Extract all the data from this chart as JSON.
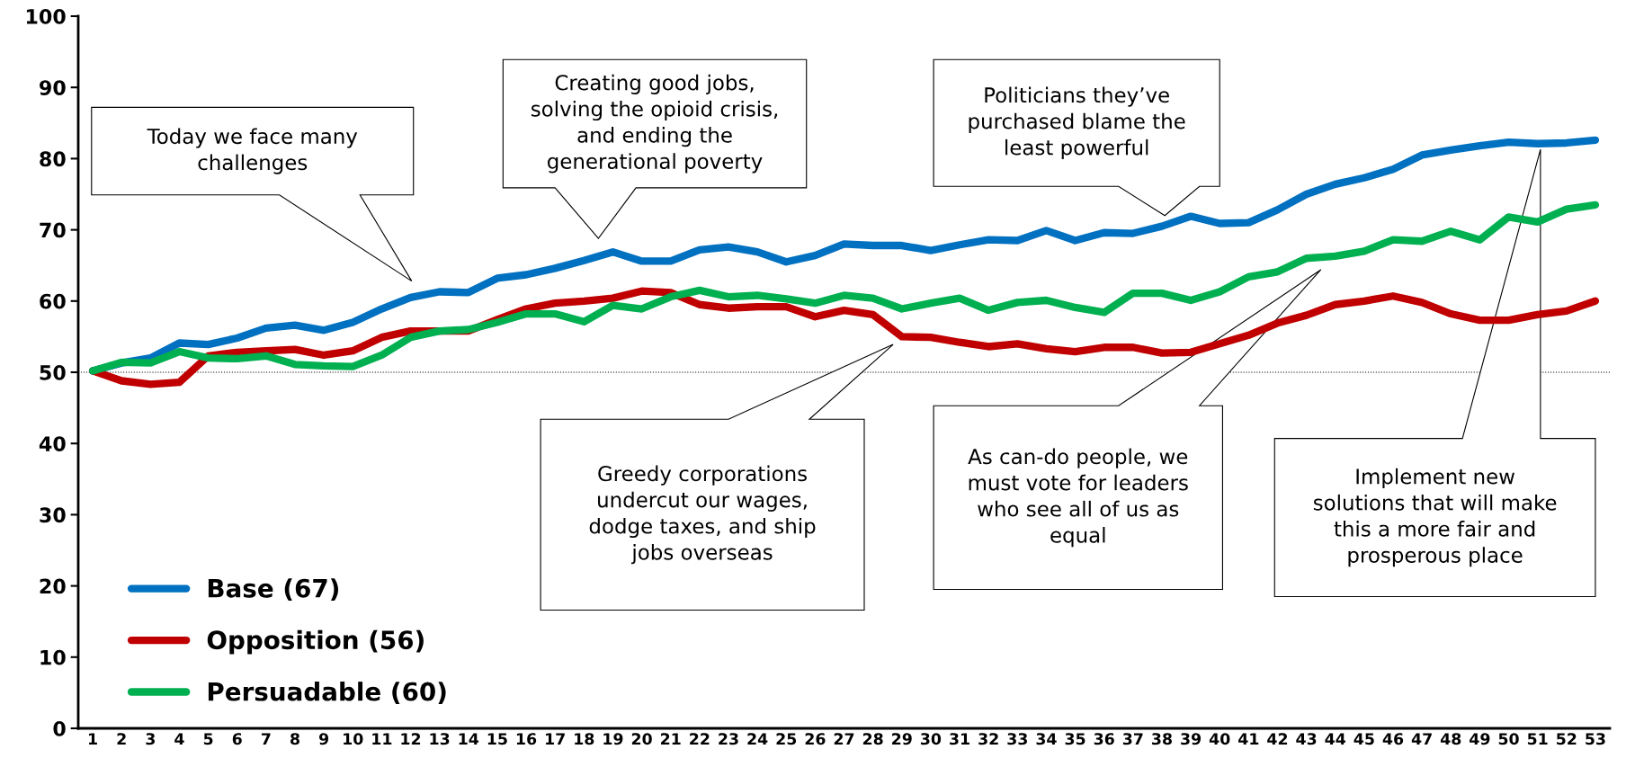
{
  "chart_data": {
    "type": "line",
    "categories": [
      "1",
      "2",
      "3",
      "4",
      "5",
      "6",
      "7",
      "8",
      "9",
      "10",
      "11",
      "12",
      "13",
      "14",
      "15",
      "16",
      "17",
      "18",
      "19",
      "20",
      "21",
      "22",
      "23",
      "24",
      "25",
      "26",
      "27",
      "28",
      "29",
      "30",
      "31",
      "32",
      "33",
      "34",
      "35",
      "36",
      "37",
      "38",
      "39",
      "40",
      "41",
      "42",
      "43",
      "44",
      "45",
      "46",
      "47",
      "48",
      "49",
      "50",
      "51",
      "52",
      "53"
    ],
    "series": [
      {
        "name": "Base (67)",
        "color": "#0070c0",
        "values": [
          50.2,
          51.3,
          52,
          54.1,
          53.9,
          54.8,
          56.2,
          56.6,
          55.9,
          57,
          58.9,
          60.5,
          61.3,
          61.2,
          63.2,
          63.7,
          64.6,
          65.7,
          66.9,
          65.6,
          65.6,
          67.2,
          67.6,
          66.9,
          65.5,
          66.4,
          68,
          67.8,
          67.8,
          67.1,
          67.9,
          68.6,
          68.5,
          69.9,
          68.5,
          69.6,
          69.5,
          70.5,
          71.9,
          70.9,
          71,
          72.8,
          75,
          76.4,
          77.3,
          78.5,
          80.5,
          81.2,
          81.8,
          82.3,
          82.1,
          82.2,
          82.6
        ]
      },
      {
        "name": "Opposition (56)",
        "color": "#c00000",
        "values": [
          50.2,
          48.8,
          48.3,
          48.6,
          52.3,
          52.8,
          53,
          53.2,
          52.4,
          53,
          54.9,
          55.8,
          55.8,
          55.8,
          57.4,
          58.9,
          59.7,
          60,
          60.4,
          61.4,
          61.2,
          59.5,
          59,
          59.2,
          59.2,
          57.8,
          58.7,
          58.1,
          55,
          54.9,
          54.2,
          53.6,
          54,
          53.3,
          52.9,
          53.5,
          53.5,
          52.7,
          52.8,
          54,
          55.2,
          56.9,
          58,
          59.5,
          60,
          60.7,
          59.8,
          58.2,
          57.3,
          57.3,
          58.1,
          58.6,
          60
        ]
      },
      {
        "name": "Persuadable (60)",
        "color": "#00b050",
        "values": [
          50.2,
          51.4,
          51.3,
          52.9,
          52,
          51.9,
          52.3,
          51.1,
          50.9,
          50.8,
          52.4,
          54.9,
          55.8,
          56,
          57,
          58.2,
          58.2,
          57.1,
          59.4,
          58.9,
          60.6,
          61.5,
          60.6,
          60.8,
          60.3,
          59.7,
          60.8,
          60.4,
          58.9,
          59.7,
          60.4,
          58.7,
          59.8,
          60.1,
          59.1,
          58.4,
          61.1,
          61.1,
          60.1,
          61.3,
          63.4,
          64.1,
          66,
          66.3,
          67,
          68.6,
          68.4,
          69.8,
          68.6,
          71.8,
          71.1,
          72.9,
          73.5
        ]
      }
    ],
    "ylim": [
      0,
      100
    ],
    "yticks": [
      0,
      10,
      20,
      30,
      40,
      50,
      60,
      70,
      80,
      90,
      100
    ],
    "grid": false,
    "legend": "bottom left",
    "marker": "none",
    "line_style": "solid",
    "ref_lines": [
      {
        "axis": "y",
        "value": 50,
        "color": "#000000",
        "line_style": "dotted"
      }
    ],
    "annotations": [
      "Today we face many\nchallenges",
      "Creating good jobs,\nsolving the opioid crisis,\nand ending the\ngenerational poverty",
      "Greedy corporations\nundercut our wages,\ndodge taxes, and ship\njobs overseas",
      "Politicians they’ve\npurchased blame the\nleast powerful",
      "As can-do people, we\nmust vote for leaders\nwho see all of us as\nequal",
      "Implement new\nsolutions that will make\nthis a more fair and\nprosperous place"
    ]
  }
}
